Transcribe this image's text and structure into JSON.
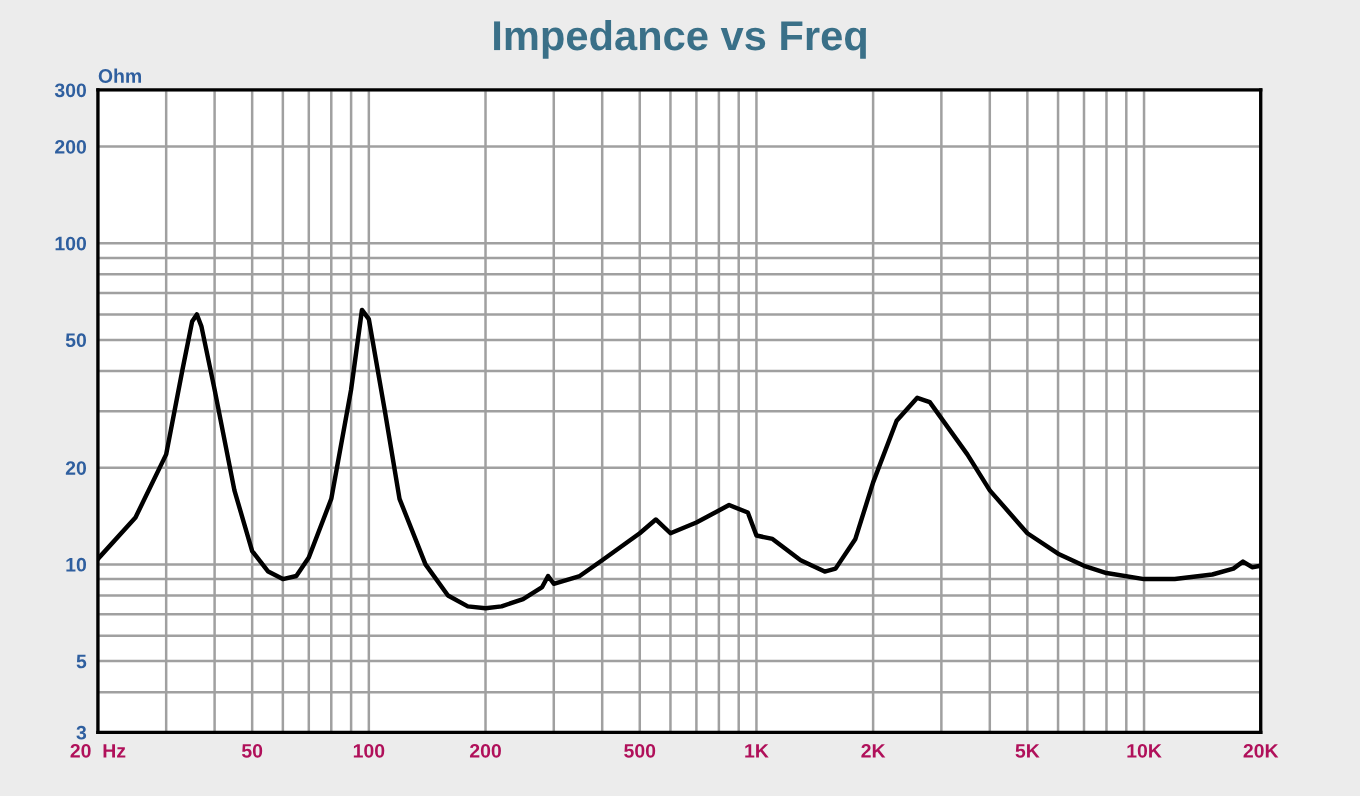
{
  "chart_data": {
    "type": "line",
    "title": "Impedance vs Freq",
    "ylabel": "Ohm",
    "log": "xy",
    "grid": true,
    "marker": "none",
    "line_style": "solid",
    "xlim": [
      20,
      20000
    ],
    "ylim": [
      3,
      300
    ],
    "xticks": [
      {
        "value": 20,
        "label": "20  Hz"
      },
      50,
      100,
      200,
      500,
      {
        "value": 1000,
        "label": "1K"
      },
      {
        "value": 2000,
        "label": "2K"
      },
      {
        "value": 5000,
        "label": "5K"
      },
      {
        "value": 10000,
        "label": "10K"
      },
      {
        "value": 20000,
        "label": "20K"
      }
    ],
    "yticks": [
      3,
      5,
      10,
      20,
      50,
      100,
      200,
      300
    ],
    "series": [
      {
        "color": "#000000",
        "x": [
          20,
          25,
          30,
          33,
          35,
          36,
          37,
          40,
          45,
          50,
          55,
          60,
          65,
          70,
          80,
          90,
          96,
          100,
          110,
          120,
          140,
          160,
          180,
          200,
          220,
          250,
          280,
          290,
          300,
          350,
          400,
          500,
          550,
          600,
          700,
          850,
          950,
          1000,
          1100,
          1300,
          1500,
          1600,
          1800,
          2000,
          2300,
          2600,
          2800,
          3500,
          4000,
          5000,
          6000,
          7000,
          8000,
          10000,
          12000,
          15000,
          17000,
          18000,
          19000,
          20000
        ],
        "values": [
          10.4,
          14,
          22,
          40,
          57,
          60,
          55,
          35,
          17,
          11,
          9.5,
          9,
          9.2,
          10.5,
          16,
          35,
          62,
          58,
          30,
          16,
          10,
          8,
          7.4,
          7.3,
          7.4,
          7.8,
          8.5,
          9.2,
          8.7,
          9.2,
          10.3,
          12.5,
          13.8,
          12.5,
          13.5,
          15.3,
          14.5,
          12.3,
          12,
          10.3,
          9.5,
          9.7,
          12,
          18,
          28,
          33,
          32,
          22,
          17,
          12.5,
          10.8,
          9.9,
          9.4,
          9.0,
          9.0,
          9.3,
          9.7,
          10.2,
          9.8,
          9.9
        ]
      }
    ]
  }
}
